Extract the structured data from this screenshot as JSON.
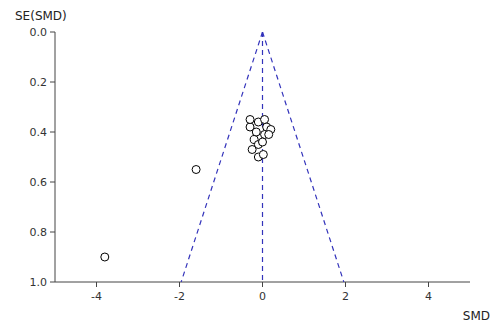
{
  "chart_data": {
    "type": "scatter",
    "x_label": "SMD",
    "y_label": "SE(SMD)",
    "xlim": [
      -5,
      5
    ],
    "ylim": [
      1.0,
      0.0
    ],
    "xticks": [
      -4,
      -2,
      0,
      2,
      4
    ],
    "yticks": [
      {
        "value": 0,
        "label": "0.0"
      },
      0.2,
      0.4,
      0.6,
      0.8,
      {
        "value": 1.0,
        "label": "1.0"
      }
    ],
    "grid": false,
    "series": [
      {
        "type": "line",
        "line_style": "dashed",
        "color": "#3333bb",
        "x": [
          0.0,
          0.0
        ],
        "values": [
          0.0,
          1.0
        ]
      },
      {
        "type": "line",
        "line_style": "dashed",
        "color": "#3333bb",
        "x": [
          0.0,
          -1.96
        ],
        "values": [
          0,
          1.0
        ]
      },
      {
        "type": "line",
        "line_style": "dashed",
        "color": "#3333bb",
        "x": [
          0.0,
          1.96
        ],
        "values": [
          0,
          1.0
        ]
      },
      {
        "type": "scatter",
        "marker": "open-circle",
        "color": "black",
        "x": [
          -0.3,
          -0.15,
          0.1,
          0.2,
          0.05,
          0.15,
          -0.2,
          -0.1,
          0.0,
          -0.3,
          -0.1,
          0.05,
          -0.25,
          -0.1,
          0.02,
          -1.6,
          -3.8
        ],
        "values": [
          0.38,
          0.4,
          0.38,
          0.39,
          0.41,
          0.41,
          0.43,
          0.45,
          0.44,
          0.35,
          0.36,
          0.35,
          0.47,
          0.5,
          0.49,
          0.55,
          0.9
        ]
      }
    ]
  }
}
